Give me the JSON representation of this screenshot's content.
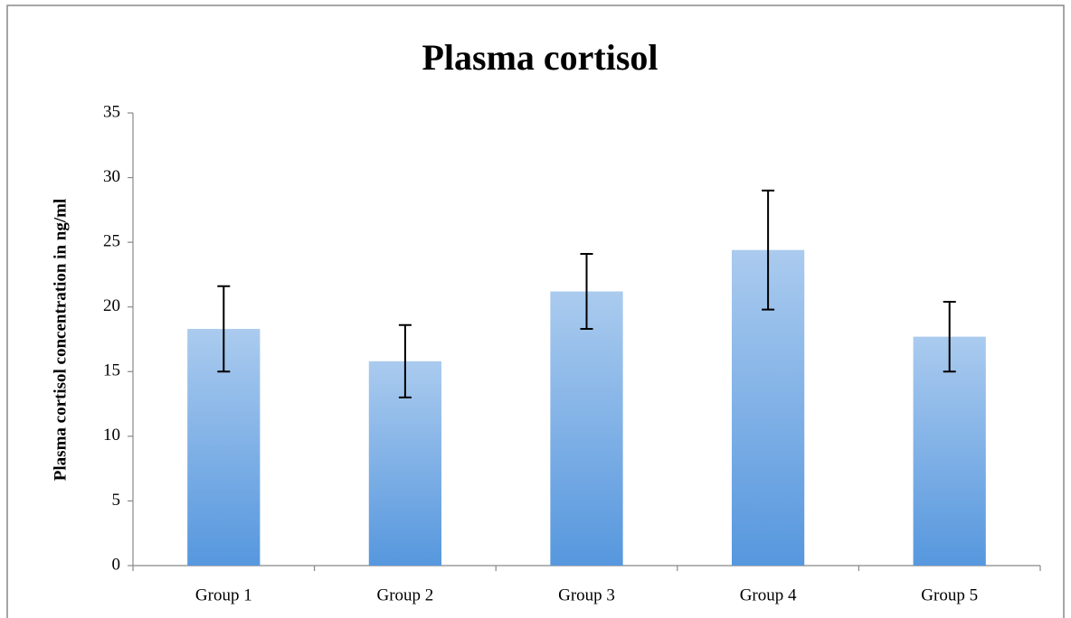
{
  "chart_data": {
    "type": "bar",
    "title": "Plasma cortisol",
    "y_label": "Plasma cortisol concentration in ng/ml",
    "categories": [
      "Group 1",
      "Group 2",
      "Group 3",
      "Group 4",
      "Group 5"
    ],
    "values": [
      18.3,
      15.8,
      21.2,
      24.4,
      17.7
    ],
    "errors": [
      3.3,
      2.8,
      2.9,
      4.6,
      2.7
    ],
    "color": "#5697de",
    "ylim": [
      0,
      35
    ],
    "yticks": [
      0,
      5,
      10,
      15,
      20,
      25,
      30,
      35
    ],
    "grid": false
  }
}
